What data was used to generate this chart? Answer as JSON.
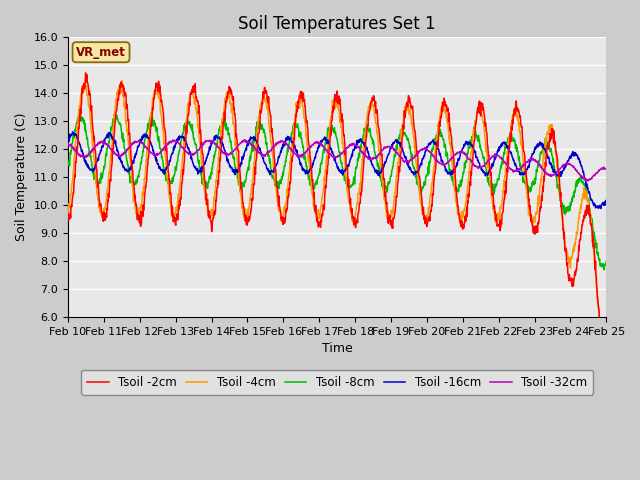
{
  "title": "Soil Temperatures Set 1",
  "xlabel": "Time",
  "ylabel": "Soil Temperature (C)",
  "ylim": [
    6.0,
    16.0
  ],
  "yticks": [
    6.0,
    7.0,
    8.0,
    9.0,
    10.0,
    11.0,
    12.0,
    13.0,
    14.0,
    15.0,
    16.0
  ],
  "xtick_labels": [
    "Feb 10",
    "Feb 11",
    "Feb 12",
    "Feb 13",
    "Feb 14",
    "Feb 15",
    "Feb 16",
    "Feb 17",
    "Feb 18",
    "Feb 19",
    "Feb 20",
    "Feb 21",
    "Feb 22",
    "Feb 23",
    "Feb 24",
    "Feb 25"
  ],
  "colors": {
    "Tsoil -2cm": "#ff0000",
    "Tsoil -4cm": "#ff9900",
    "Tsoil -8cm": "#00bb00",
    "Tsoil -16cm": "#0000cc",
    "Tsoil -32cm": "#bb00bb"
  },
  "legend_label": "VR_met",
  "plot_bg_color": "#e8e8e8",
  "fig_bg_color": "#cccccc",
  "grid_color": "#ffffff",
  "title_fontsize": 12,
  "axis_fontsize": 9,
  "tick_fontsize": 8
}
